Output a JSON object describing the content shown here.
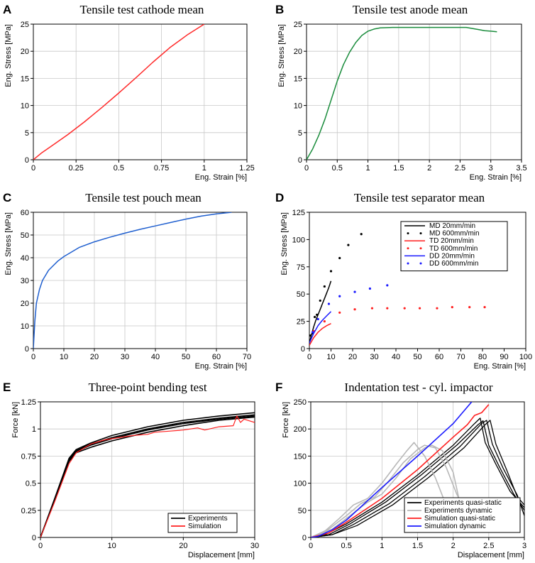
{
  "figure": {
    "colors": {
      "axis": "#000000",
      "grid": "#bfbfbf"
    }
  },
  "chart_data": [
    {
      "id": "A",
      "letter": "A",
      "type": "line",
      "title": "Tensile test cathode mean",
      "xlabel": "Eng. Strain [%]",
      "ylabel": "Eng. Stress [MPa]",
      "xlim": [
        0,
        1.25
      ],
      "ylim": [
        0,
        25
      ],
      "xticks": [
        0,
        0.25,
        0.5,
        0.75,
        1,
        1.25
      ],
      "xtick_labels": [
        "0",
        "0.25",
        "0.5",
        "0.75",
        "1",
        "1.25"
      ],
      "yticks": [
        0,
        5,
        10,
        15,
        20,
        25
      ],
      "ytick_labels": [
        "0",
        "5",
        "10",
        "15",
        "20",
        "25"
      ],
      "grid": true,
      "legend": null,
      "series": [
        {
          "name": "cathode mean",
          "color": "#ff2a2a",
          "style": "line",
          "x": [
            0,
            0.05,
            0.1,
            0.2,
            0.3,
            0.4,
            0.5,
            0.6,
            0.7,
            0.8,
            0.9,
            1.0
          ],
          "y": [
            0,
            1.3,
            2.4,
            4.6,
            7.0,
            9.6,
            12.3,
            15.1,
            18.0,
            20.7,
            23.0,
            25.0
          ]
        }
      ]
    },
    {
      "id": "B",
      "letter": "B",
      "type": "line",
      "title": "Tensile test anode mean",
      "xlabel": "Eng. Strain [%]",
      "ylabel": "Eng. Stress [MPa]",
      "xlim": [
        0,
        3.5
      ],
      "ylim": [
        0,
        25
      ],
      "xticks": [
        0,
        0.5,
        1,
        1.5,
        2,
        2.5,
        3,
        3.5
      ],
      "xtick_labels": [
        "0",
        "0.5",
        "1",
        "1.5",
        "2",
        "2.5",
        "3",
        "3.5"
      ],
      "yticks": [
        0,
        5,
        10,
        15,
        20,
        25
      ],
      "ytick_labels": [
        "0",
        "5",
        "10",
        "15",
        "20",
        "25"
      ],
      "grid": true,
      "legend": null,
      "series": [
        {
          "name": "anode mean",
          "color": "#1a8c3c",
          "style": "line",
          "x": [
            0,
            0.1,
            0.2,
            0.3,
            0.4,
            0.5,
            0.6,
            0.7,
            0.8,
            0.9,
            1.0,
            1.1,
            1.2,
            1.4,
            1.7,
            2.0,
            2.3,
            2.6,
            2.8,
            2.9,
            3.0,
            3.1
          ],
          "y": [
            0,
            2.0,
            4.5,
            7.5,
            11.0,
            14.5,
            17.5,
            19.8,
            21.6,
            22.9,
            23.7,
            24.1,
            24.3,
            24.4,
            24.4,
            24.4,
            24.4,
            24.4,
            24.0,
            23.8,
            23.7,
            23.6
          ]
        }
      ]
    },
    {
      "id": "C",
      "letter": "C",
      "type": "line",
      "title": "Tensile test pouch mean",
      "xlabel": "Eng. Strain [%]",
      "ylabel": "Eng. Stress [MPa]",
      "xlim": [
        0,
        70
      ],
      "ylim": [
        0,
        60
      ],
      "xticks": [
        0,
        10,
        20,
        30,
        40,
        50,
        60,
        70
      ],
      "xtick_labels": [
        "0",
        "10",
        "20",
        "30",
        "40",
        "50",
        "60",
        "70"
      ],
      "yticks": [
        0,
        10,
        20,
        30,
        40,
        50,
        60
      ],
      "ytick_labels": [
        "0",
        "10",
        "20",
        "30",
        "40",
        "50",
        "60"
      ],
      "grid": true,
      "legend": null,
      "series": [
        {
          "name": "pouch mean",
          "color": "#1f5fcf",
          "style": "line",
          "x": [
            0,
            0.5,
            1,
            2,
            3,
            5,
            8,
            10,
            15,
            20,
            25,
            30,
            35,
            40,
            45,
            50,
            55,
            60,
            65
          ],
          "y": [
            0,
            12,
            20,
            26,
            30,
            34.5,
            38.5,
            40.5,
            44.5,
            47,
            49,
            50.8,
            52.5,
            54,
            55.5,
            57,
            58.3,
            59.3,
            60
          ]
        }
      ]
    },
    {
      "id": "D",
      "letter": "D",
      "type": "scatter",
      "title": "Tensile test separator mean",
      "xlabel": "Eng. Strain [%]",
      "ylabel": "Eng. Stress [MPa]",
      "xlim": [
        0,
        100
      ],
      "ylim": [
        0,
        125
      ],
      "xticks": [
        0,
        10,
        20,
        30,
        40,
        50,
        60,
        70,
        80,
        90,
        100
      ],
      "xtick_labels": [
        "0",
        "10",
        "20",
        "30",
        "40",
        "50",
        "60",
        "70",
        "80",
        "90",
        "100"
      ],
      "yticks": [
        0,
        25,
        50,
        75,
        100,
        125
      ],
      "ytick_labels": [
        "0",
        "25",
        "50",
        "75",
        "100",
        "125"
      ],
      "grid": false,
      "legend": "top-right",
      "series": [
        {
          "name": "MD 20mm/min",
          "color": "#000000",
          "style": "line",
          "x": [
            0,
            1,
            2,
            3,
            4,
            5,
            6,
            7,
            8,
            9,
            10
          ],
          "y": [
            5,
            13,
            20,
            26,
            31,
            36,
            41,
            46,
            51,
            56,
            62
          ]
        },
        {
          "name": "MD 600mm/min",
          "color": "#000000",
          "style": "dots",
          "x": [
            0.5,
            1.5,
            2.5,
            3.5,
            5,
            7,
            10,
            14,
            18,
            24
          ],
          "y": [
            12,
            14,
            29,
            31,
            44,
            57,
            71,
            83,
            95,
            105
          ]
        },
        {
          "name": "TD 20mm/min",
          "color": "#ff1f1f",
          "style": "line",
          "x": [
            0,
            2,
            4,
            6,
            8,
            10
          ],
          "y": [
            3,
            10,
            15,
            18.5,
            21,
            23
          ]
        },
        {
          "name": "TD 600mm/min",
          "color": "#ff1f1f",
          "style": "dots",
          "x": [
            2,
            7,
            14,
            21,
            29,
            36,
            44,
            51,
            59,
            66,
            74,
            81
          ],
          "y": [
            16,
            25,
            33,
            36,
            37,
            37,
            37,
            37,
            37,
            38,
            38,
            38
          ]
        },
        {
          "name": "DD 20mm/min",
          "color": "#1a1aff",
          "style": "line",
          "x": [
            0,
            2,
            4,
            6,
            8,
            10
          ],
          "y": [
            5,
            14,
            21,
            26,
            30,
            34
          ]
        },
        {
          "name": "DD 600mm/min",
          "color": "#1a1aff",
          "style": "dots",
          "x": [
            1.5,
            4,
            9,
            14,
            21,
            28,
            36
          ],
          "y": [
            15,
            27,
            41,
            48,
            52,
            55,
            58
          ]
        }
      ]
    },
    {
      "id": "E",
      "letter": "E",
      "type": "line",
      "title": "Three-point bending test",
      "xlabel": "Displacement [mm]",
      "ylabel": "Force [kN]",
      "xlim": [
        0,
        30
      ],
      "ylim": [
        0,
        1.25
      ],
      "xticks": [
        0,
        10,
        20,
        30
      ],
      "xtick_labels": [
        "0",
        "10",
        "20",
        "30"
      ],
      "yticks": [
        0,
        0.25,
        0.5,
        0.75,
        1,
        1.25
      ],
      "ytick_labels": [
        "0",
        "0.25",
        "0.5",
        "0.75",
        "1",
        "1.25"
      ],
      "grid": true,
      "legend": "bottom-right",
      "legend_entries": [
        {
          "name": "Experiments",
          "color": "#000000"
        },
        {
          "name": "Simulation",
          "color": "#ff1f1f"
        }
      ],
      "series": [
        {
          "name": "Experiments",
          "color": "#000000",
          "style": "line",
          "width": 1.6,
          "x": [
            0,
            2,
            4,
            5,
            7,
            10,
            15,
            20,
            25,
            30
          ],
          "y": [
            0,
            0.35,
            0.72,
            0.8,
            0.86,
            0.92,
            1.0,
            1.06,
            1.1,
            1.13
          ]
        },
        {
          "name": "Experiments",
          "color": "#000000",
          "style": "line",
          "width": 1.6,
          "x": [
            0,
            2,
            4,
            5,
            7,
            10,
            15,
            20,
            25,
            30
          ],
          "y": [
            0,
            0.34,
            0.7,
            0.78,
            0.83,
            0.89,
            0.97,
            1.03,
            1.08,
            1.11
          ]
        },
        {
          "name": "Experiments",
          "color": "#000000",
          "style": "line",
          "width": 1.6,
          "x": [
            0,
            2,
            4,
            5,
            7,
            10,
            15,
            20,
            25,
            30
          ],
          "y": [
            0,
            0.36,
            0.73,
            0.81,
            0.87,
            0.94,
            1.02,
            1.08,
            1.12,
            1.15
          ]
        },
        {
          "name": "Experiments",
          "color": "#000000",
          "style": "line",
          "width": 1.6,
          "x": [
            0,
            2,
            4,
            5,
            7,
            10,
            15,
            20,
            25,
            30
          ],
          "y": [
            0,
            0.35,
            0.71,
            0.79,
            0.85,
            0.91,
            0.99,
            1.05,
            1.09,
            1.12
          ]
        },
        {
          "name": "Simulation",
          "color": "#ff1f1f",
          "style": "line",
          "width": 1.2,
          "x": [
            0,
            2,
            4,
            5,
            7,
            9,
            11,
            13,
            15,
            16,
            18,
            20,
            22,
            23,
            25,
            27,
            27.5,
            28,
            28.5,
            30
          ],
          "y": [
            0,
            0.33,
            0.68,
            0.78,
            0.86,
            0.9,
            0.92,
            0.94,
            0.95,
            0.97,
            0.98,
            0.99,
            1.01,
            0.99,
            1.02,
            1.03,
            1.12,
            1.06,
            1.09,
            1.06
          ]
        }
      ]
    },
    {
      "id": "F",
      "letter": "F",
      "type": "line",
      "title": "Indentation test - cyl. impactor",
      "xlabel": "Displacement [mm]",
      "ylabel": "Force [kN]",
      "xlim": [
        0,
        3
      ],
      "ylim": [
        0,
        250
      ],
      "xticks": [
        0,
        0.5,
        1,
        1.5,
        2,
        2.5,
        3
      ],
      "xtick_labels": [
        "0",
        "0.5",
        "1",
        "1.5",
        "2",
        "2.5",
        "3"
      ],
      "yticks": [
        0,
        50,
        100,
        150,
        200,
        250
      ],
      "ytick_labels": [
        "0",
        "50",
        "100",
        "150",
        "200",
        "250"
      ],
      "grid": true,
      "legend": "bottom-right",
      "legend_entries": [
        {
          "name": "Experiments quasi-static",
          "color": "#000000"
        },
        {
          "name": "Experiments dynamic",
          "color": "#b8b8b8"
        },
        {
          "name": "Simulation quasi-static",
          "color": "#ff1f1f"
        },
        {
          "name": "Simulation dynamic",
          "color": "#1a1aff"
        }
      ],
      "series": [
        {
          "name": "Experiments quasi-static",
          "color": "#000000",
          "style": "line",
          "width": 1.3,
          "x": [
            0,
            0.2,
            0.5,
            1.0,
            1.5,
            2.0,
            2.3,
            2.38,
            2.45,
            2.6,
            2.8,
            3.0
          ],
          "y": [
            0,
            5,
            25,
            65,
            115,
            170,
            210,
            220,
            175,
            135,
            85,
            55
          ]
        },
        {
          "name": "Experiments quasi-static",
          "color": "#000000",
          "style": "line",
          "width": 1.3,
          "x": [
            0,
            0.25,
            0.55,
            1.05,
            1.55,
            2.05,
            2.35,
            2.42,
            2.5,
            2.65,
            2.85,
            3.0
          ],
          "y": [
            0,
            5,
            25,
            65,
            115,
            170,
            208,
            215,
            170,
            130,
            80,
            50
          ]
        },
        {
          "name": "Experiments quasi-static",
          "color": "#000000",
          "style": "line",
          "width": 1.3,
          "x": [
            0,
            0.3,
            0.6,
            1.1,
            1.6,
            2.1,
            2.4,
            2.47,
            2.55,
            2.7,
            2.9,
            3.0
          ],
          "y": [
            0,
            5,
            24,
            62,
            112,
            168,
            210,
            216,
            172,
            128,
            78,
            40
          ]
        },
        {
          "name": "Experiments quasi-static",
          "color": "#000000",
          "style": "line",
          "width": 1.3,
          "x": [
            0,
            0.3,
            0.65,
            1.15,
            1.65,
            2.15,
            2.45,
            2.52,
            2.6,
            2.75,
            2.9,
            3.0
          ],
          "y": [
            0,
            5,
            22,
            60,
            110,
            165,
            208,
            216,
            172,
            125,
            75,
            60
          ]
        },
        {
          "name": "Experiments dynamic",
          "color": "#b8b8b8",
          "style": "line",
          "width": 1.6,
          "x": [
            0,
            0.2,
            0.4,
            0.6,
            0.8,
            1.0,
            1.2,
            1.35,
            1.45,
            1.6,
            1.75,
            1.9,
            2.0
          ],
          "y": [
            0,
            12,
            35,
            60,
            72,
            100,
            135,
            160,
            175,
            150,
            110,
            60,
            30
          ]
        },
        {
          "name": "Experiments dynamic",
          "color": "#b8b8b8",
          "style": "line",
          "width": 1.6,
          "x": [
            0,
            0.25,
            0.5,
            0.7,
            0.9,
            1.1,
            1.3,
            1.5,
            1.6,
            1.75,
            1.9,
            2.05,
            2.2
          ],
          "y": [
            0,
            15,
            40,
            62,
            75,
            105,
            138,
            162,
            170,
            165,
            130,
            80,
            40
          ]
        },
        {
          "name": "Experiments dynamic",
          "color": "#b8b8b8",
          "style": "line",
          "width": 1.6,
          "x": [
            0,
            0.3,
            0.6,
            0.8,
            1.0,
            1.2,
            1.4,
            1.6,
            1.7,
            1.85,
            2.0,
            2.1,
            2.2
          ],
          "y": [
            0,
            15,
            45,
            65,
            80,
            110,
            145,
            165,
            170,
            160,
            120,
            60,
            25
          ]
        },
        {
          "name": "Simulation quasi-static",
          "color": "#ff1f1f",
          "style": "line",
          "width": 1.6,
          "x": [
            0,
            0.25,
            0.5,
            1.0,
            1.5,
            2.0,
            2.2,
            2.3,
            2.4,
            2.5
          ],
          "y": [
            0,
            8,
            28,
            72,
            125,
            185,
            208,
            225,
            230,
            245
          ]
        },
        {
          "name": "Simulation dynamic",
          "color": "#1a1aff",
          "style": "line",
          "width": 1.6,
          "x": [
            0,
            0.1,
            0.3,
            0.5,
            1.0,
            1.5,
            2.0,
            2.26
          ],
          "y": [
            0,
            2,
            14,
            32,
            92,
            150,
            210,
            250
          ]
        }
      ]
    }
  ]
}
